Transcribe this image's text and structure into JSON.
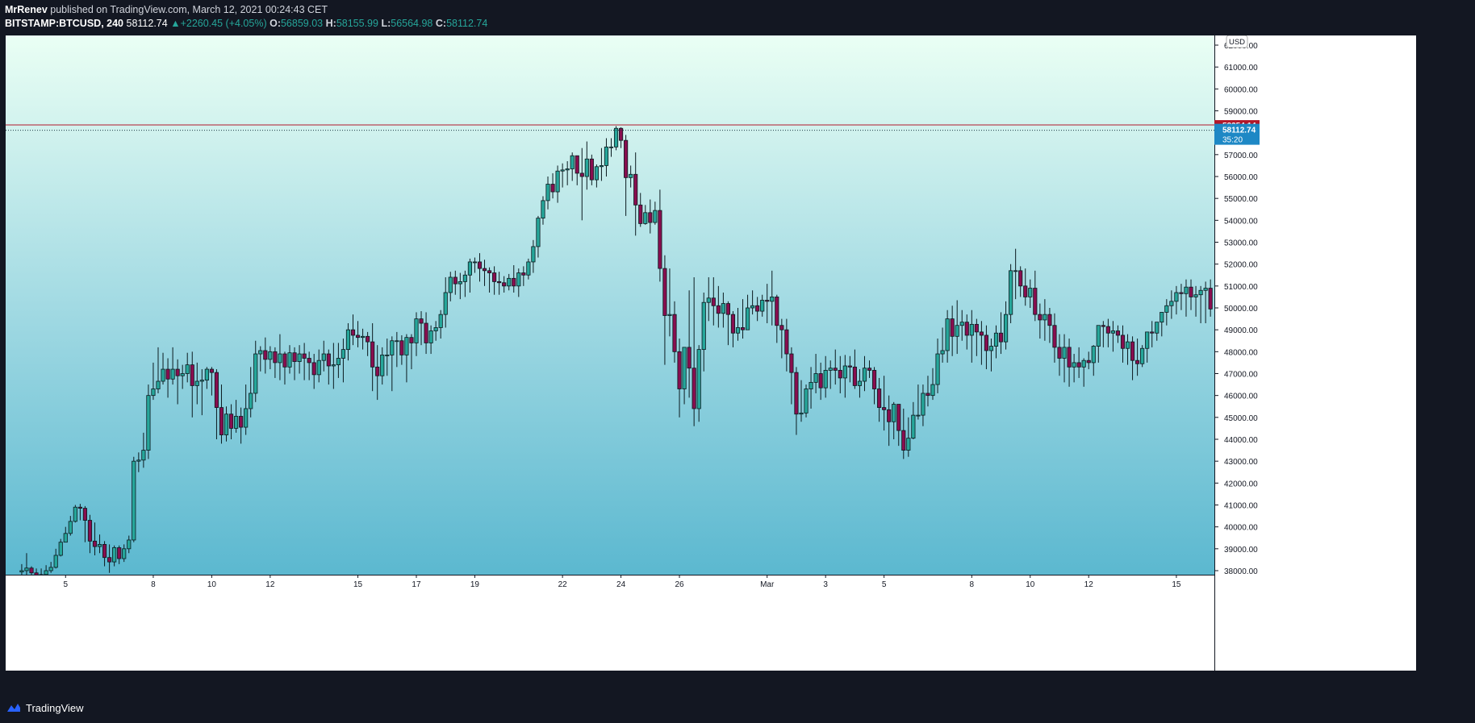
{
  "header": {
    "author": "MrRenev",
    "published_text": "published on TradingView.com, March 12, 2021 00:24:43 CET",
    "symbol": "BITSTAMP:BTCUSD, 240",
    "last": "58112.74",
    "change_arrow": "▲",
    "change": "+2260.45 (+4.05%)",
    "o_label": "O:",
    "o_value": "56859.03",
    "h_label": "H:",
    "h_value": "58155.99",
    "l_label": "L:",
    "l_value": "56564.98",
    "c_label": "C:",
    "c_value": "58112.74"
  },
  "footer": {
    "brand": "TradingView"
  },
  "colors": {
    "background_top": "#eafff4",
    "background_bottom": "#42acc9",
    "up_candle": "#26a69a",
    "down_candle": "#880e4f",
    "outline": "#0b1a1f",
    "price_line": "#b2182b",
    "last_price": "#1e88c5"
  },
  "chart_data": {
    "type": "candlestick",
    "currency_label": "USD",
    "y_ticks": [
      38000,
      39000,
      40000,
      41000,
      42000,
      43000,
      44000,
      45000,
      46000,
      47000,
      48000,
      49000,
      50000,
      51000,
      52000,
      53000,
      54000,
      55000,
      56000,
      57000,
      58000,
      59000,
      60000,
      61000,
      62000
    ],
    "y_tick_labels": [
      "38000.00",
      "39000.00",
      "40000.00",
      "41000.00",
      "42000.00",
      "43000.00",
      "44000.00",
      "45000.00",
      "46000.00",
      "47000.00",
      "48000.00",
      "49000.00",
      "50000.00",
      "51000.00",
      "52000.00",
      "53000.00",
      "54000.00",
      "55000.00",
      "56000.00",
      "57000.00",
      "58000.00",
      "59000.00",
      "60000.00",
      "61000.00",
      "62000.00"
    ],
    "ylim": [
      37800,
      63000
    ],
    "x_tick_labels": [
      "5",
      "8",
      "10",
      "12",
      "15",
      "17",
      "19",
      "22",
      "24",
      "26",
      "Mar",
      "3",
      "5",
      "8",
      "10",
      "12",
      "15"
    ],
    "x_tick_days": [
      5,
      8,
      10,
      12,
      15,
      17,
      19,
      22,
      24,
      26,
      29,
      31,
      33,
      36,
      38,
      40,
      43
    ],
    "day_range": [
      2.95,
      44.3
    ],
    "candles_per_day": 6,
    "first_candle_day": 3.5,
    "candle_closes": [
      38000,
      38120,
      37900,
      37700,
      37820,
      38000,
      38150,
      38700,
      39300,
      39700,
      40250,
      40900,
      40850,
      40300,
      39350,
      39100,
      39200,
      38600,
      38400,
      39050,
      38550,
      39000,
      39400,
      43000,
      43050,
      43500,
      46000,
      46300,
      46650,
      47200,
      46750,
      47200,
      46900,
      47000,
      47400,
      46450,
      46650,
      46700,
      47200,
      47050,
      45450,
      44200,
      45150,
      44500,
      45050,
      44550,
      45400,
      46100,
      47900,
      48050,
      47650,
      48000,
      47500,
      47900,
      47300,
      47950,
      47550,
      47900,
      47700,
      47500,
      46950,
      47600,
      47900,
      47350,
      47400,
      47700,
      48100,
      49000,
      48750,
      48650,
      48700,
      48450,
      47300,
      46900,
      47850,
      47850,
      48500,
      48500,
      47850,
      48650,
      48400,
      49500,
      49300,
      48400,
      48950,
      49100,
      49700,
      50700,
      51400,
      51100,
      51200,
      51500,
      52100,
      52100,
      51800,
      51700,
      51600,
      51200,
      51150,
      51000,
      51350,
      51000,
      51600,
      51500,
      52100,
      52800,
      54100,
      54900,
      55650,
      55300,
      56250,
      56300,
      56350,
      56950,
      56150,
      56000,
      56800,
      55850,
      56450,
      56500,
      57350,
      57350,
      58200,
      57650,
      55950,
      56100,
      54700,
      53850,
      54350,
      53900,
      54450,
      51800,
      49650,
      49700,
      48000,
      46300,
      48200,
      47250,
      45400,
      48100,
      50250,
      50450,
      50100,
      49750,
      50200,
      49700,
      48850,
      49100,
      49000,
      50000,
      50100,
      49850,
      50350,
      50300,
      50500,
      49200,
      49000,
      47900,
      47050,
      45150,
      45200,
      46300,
      46600,
      47000,
      46350,
      47150,
      47250,
      47150,
      46800,
      47350,
      47300,
      46450,
      46650,
      47250,
      47150,
      46300,
      45450,
      45350,
      44800,
      45600,
      44400,
      43500,
      44050,
      45100,
      45100,
      46100,
      46000,
      46500,
      47900,
      48050,
      49500,
      48700,
      49200,
      49350,
      48750,
      49250,
      48900,
      48750,
      48050,
      48250,
      48850,
      48450,
      49700,
      51700,
      51700,
      51000,
      50500,
      50900,
      49700,
      49450,
      49700,
      49200,
      48200,
      47700,
      48200,
      47300,
      47500,
      47300,
      47600,
      47500,
      48250,
      49200,
      49150,
      48850,
      48950,
      48750,
      48150,
      48450,
      47600,
      47450,
      48150,
      48900,
      48850,
      49350,
      49800,
      50100,
      50300,
      50700,
      50650,
      50950,
      50500,
      50600,
      50800,
      50900,
      49950,
      50600,
      51000,
      51250,
      52300,
      53550,
      54000,
      53900,
      53800,
      54200,
      53600,
      54050,
      54500,
      54900,
      54000,
      53850,
      54250,
      54650,
      55500,
      56300,
      56700,
      56100,
      56500,
      56050,
      55800,
      55350,
      55300,
      55750,
      55950,
      56500,
      56700,
      56800,
      57100,
      58112.74
    ],
    "candle_highs": [
      38300,
      38800,
      38200,
      38100,
      38100,
      38250,
      38400,
      39000,
      39450,
      40000,
      40500,
      41000,
      41050,
      40950,
      40550,
      40200,
      39650,
      39350,
      39200,
      39150,
      39150,
      39200,
      39600,
      43200,
      43400,
      44300,
      46500,
      47500,
      48200,
      47950,
      47700,
      48200,
      47650,
      47400,
      47950,
      48000,
      47500,
      47200,
      47300,
      47300,
      47200,
      46500,
      45500,
      45600,
      45800,
      45450,
      46500,
      47300,
      48500,
      48250,
      48650,
      48250,
      48200,
      48800,
      48000,
      48300,
      48200,
      48300,
      48400,
      48000,
      47900,
      48100,
      48500,
      48100,
      48400,
      48400,
      48600,
      49300,
      49700,
      49400,
      49050,
      48900,
      49300,
      48300,
      48200,
      48600,
      48700,
      48900,
      48750,
      48800,
      48800,
      49800,
      49850,
      49800,
      49200,
      49400,
      49900,
      51400,
      51650,
      51700,
      51600,
      51700,
      52250,
      52300,
      52500,
      52200,
      51850,
      51900,
      51650,
      51450,
      51550,
      51950,
      51800,
      51900,
      52250,
      53100,
      54200,
      55100,
      56000,
      56150,
      56500,
      56600,
      56700,
      57100,
      56900,
      57300,
      57600,
      57000,
      56550,
      57300,
      57750,
      57750,
      58300,
      58250,
      57900,
      56500,
      57100,
      55250,
      54700,
      54950,
      54850,
      55400,
      52400,
      51800,
      50300,
      48600,
      48200,
      50800,
      51400,
      48300,
      50700,
      51400,
      51400,
      51000,
      50700,
      50300,
      49850,
      50000,
      50400,
      50600,
      50800,
      50500,
      50600,
      51100,
      51700,
      50600,
      49500,
      49500,
      48200,
      47300,
      46700,
      46500,
      47300,
      47900,
      47500,
      47800,
      47600,
      48100,
      47800,
      47850,
      47800,
      48100,
      47200,
      47800,
      47600,
      47300,
      46800,
      46900,
      46000,
      45700,
      45600,
      45400,
      45000,
      45700,
      46500,
      46500,
      46900,
      47250,
      48600,
      49100,
      49900,
      50100,
      50350,
      49900,
      49700,
      49900,
      49500,
      49400,
      49200,
      48600,
      49200,
      49800,
      50300,
      52000,
      52700,
      51900,
      51800,
      51300,
      51700,
      50200,
      50400,
      50000,
      49750,
      48800,
      48800,
      48600,
      47900,
      48200,
      47700,
      48000,
      48300,
      49200,
      49400,
      49500,
      49400,
      49200,
      49200,
      48800,
      48700,
      48600,
      48300,
      48900,
      49400,
      49300,
      49800,
      50400,
      50800,
      51000,
      51100,
      51300,
      51300,
      51000,
      51000,
      51200,
      51300,
      50900,
      50900,
      51300,
      51800,
      53000,
      54400,
      54400,
      54300,
      54500,
      54500,
      54500,
      54500,
      55200,
      55300,
      55000,
      54400,
      54900,
      55700,
      56500,
      57000,
      57400,
      56800,
      56800,
      56400,
      56100,
      56200,
      55700,
      56100,
      56600,
      56700,
      57100,
      57600,
      57700,
      58155.99
    ],
    "candle_lows": [
      37800,
      37800,
      37600,
      37500,
      37600,
      37750,
      37900,
      38100,
      38650,
      39300,
      39600,
      40200,
      40300,
      39300,
      38800,
      38700,
      38800,
      38200,
      37900,
      38200,
      38300,
      38400,
      38800,
      39300,
      42500,
      42700,
      43100,
      45800,
      46100,
      46500,
      45900,
      46500,
      45600,
      46300,
      46600,
      45000,
      45600,
      45100,
      46300,
      46000,
      44000,
      43800,
      43900,
      44000,
      44300,
      43800,
      44200,
      45000,
      45700,
      47100,
      47000,
      47200,
      46800,
      46700,
      46500,
      47000,
      46700,
      47000,
      46700,
      46700,
      46300,
      46600,
      47100,
      46500,
      46300,
      46800,
      46600,
      47600,
      48300,
      48200,
      48100,
      47800,
      46200,
      45800,
      46500,
      46900,
      46200,
      47300,
      47400,
      46600,
      47200,
      47800,
      48300,
      47900,
      47900,
      48500,
      48600,
      49100,
      50300,
      50600,
      50400,
      50500,
      50700,
      51600,
      51200,
      51000,
      50700,
      50600,
      50600,
      50700,
      50800,
      50700,
      50500,
      51000,
      51300,
      51600,
      52300,
      53800,
      54500,
      55000,
      54800,
      55500,
      55600,
      55800,
      55600,
      54000,
      55400,
      55600,
      55500,
      55800,
      56000,
      56900,
      57200,
      57300,
      54200,
      55500,
      53300,
      53700,
      53800,
      53400,
      53800,
      51200,
      47400,
      48700,
      47500,
      45000,
      45600,
      45900,
      44600,
      44800,
      47100,
      49400,
      49200,
      49100,
      49100,
      48300,
      48200,
      48500,
      48600,
      49000,
      49700,
      49400,
      49600,
      49300,
      49200,
      48400,
      47700,
      47100,
      45600,
      44200,
      44800,
      45000,
      45400,
      46100,
      45800,
      45900,
      46300,
      46500,
      46100,
      45900,
      46600,
      46300,
      45900,
      46200,
      46800,
      45600,
      44800,
      44400,
      43700,
      44000,
      43700,
      43100,
      43200,
      44000,
      44900,
      44600,
      45500,
      45800,
      46100,
      47500,
      47500,
      47800,
      47900,
      48500,
      48100,
      47500,
      47800,
      47400,
      47200,
      47100,
      47700,
      47900,
      48100,
      49300,
      50400,
      50500,
      50100,
      50000,
      49400,
      48600,
      48500,
      48400,
      47500,
      46900,
      46600,
      46400,
      46600,
      46800,
      46400,
      47200,
      46900,
      47500,
      48200,
      48200,
      48000,
      48400,
      47500,
      47400,
      46700,
      46900,
      47300,
      47500,
      48200,
      48500,
      48700,
      49200,
      49500,
      49700,
      49900,
      49600,
      49900,
      49600,
      49300,
      49300,
      49600,
      49900,
      50200,
      51000,
      52100,
      53500,
      53300,
      53100,
      52900,
      53000,
      53000,
      53300,
      53400,
      53800,
      53200,
      52900,
      53600,
      54100,
      55000,
      55200,
      55900,
      55200,
      55400,
      55000,
      54300,
      54200,
      55100,
      55100,
      55500,
      56200,
      56300,
      56564.98
    ],
    "reference_price": 58354.14,
    "reference_price_label": "58354.14",
    "last_price": 58112.74,
    "last_price_label": "58112.74",
    "countdown": "35:20",
    "grid": false,
    "title": "",
    "xlabel": "",
    "ylabel": ""
  }
}
